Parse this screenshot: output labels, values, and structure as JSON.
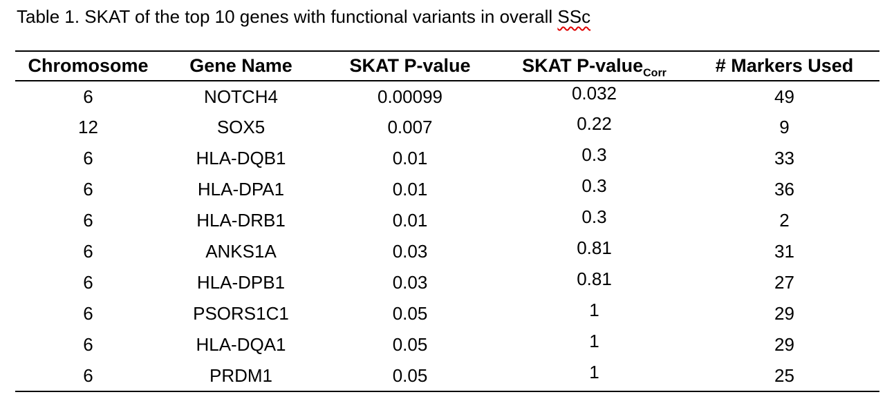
{
  "title": {
    "prefix": "Table 1. SKAT of the top 10 genes with functional variants in overall ",
    "misspelled_word": "SSc"
  },
  "table": {
    "headers": [
      "Chromosome",
      "Gene Name",
      "SKAT P-value",
      "SKAT P-value",
      "# Markers Used"
    ],
    "corr_subscript": "Corr",
    "column_names": [
      "chromosome",
      "gene-name",
      "skat-pvalue",
      "skat-pvalue-corr",
      "markers-used"
    ],
    "rows": [
      [
        "6",
        "NOTCH4",
        "0.00099",
        "0.032",
        "49"
      ],
      [
        "12",
        "SOX5",
        "0.007",
        "0.22",
        "9"
      ],
      [
        "6",
        "HLA-DQB1",
        "0.01",
        "0.3",
        "33"
      ],
      [
        "6",
        "HLA-DPA1",
        "0.01",
        "0.3",
        "36"
      ],
      [
        "6",
        "HLA-DRB1",
        "0.01",
        "0.3",
        "2"
      ],
      [
        "6",
        "ANKS1A",
        "0.03",
        "0.81",
        "31"
      ],
      [
        "6",
        "HLA-DPB1",
        "0.03",
        "0.81",
        "27"
      ],
      [
        "6",
        "PSORS1C1",
        "0.05",
        "1",
        "29"
      ],
      [
        "6",
        "HLA-DQA1",
        "0.05",
        "1",
        "29"
      ],
      [
        "6",
        "PRDM1",
        "0.05",
        "1",
        "25"
      ]
    ]
  },
  "colors": {
    "text": "#000000",
    "rule": "#000000",
    "spellcheck_underline": "#e00000",
    "background": "#ffffff"
  }
}
